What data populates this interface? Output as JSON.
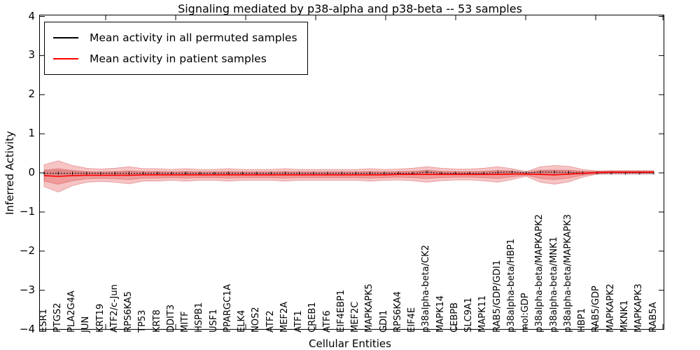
{
  "title": "Signaling mediated by p38-alpha and p38-beta -- 53 samples",
  "axes": {
    "ylabel": "Inferred Activity",
    "xlabel": "Cellular Entities",
    "y_tick_labels": [
      "4",
      "3",
      "2",
      "1",
      "0",
      "−1",
      "−2",
      "−3",
      "−4"
    ],
    "y_tick_values": [
      4,
      3,
      2,
      1,
      0,
      -1,
      -2,
      -3,
      -4
    ],
    "ylim": [
      -4,
      4
    ]
  },
  "legend": {
    "items": [
      {
        "label": "Mean activity in all permuted samples",
        "color": "#000000"
      },
      {
        "label": "Mean activity in patient samples",
        "color": "#ff0000"
      }
    ]
  },
  "colors": {
    "patient_line": "#ff0000",
    "permuted_line": "#000000",
    "patient_band_fill": "rgba(226,61,61,0.30)",
    "patient_band_edge": "rgba(200,45,45,0.40)",
    "permuted_band_fill": "rgba(130,130,130,0.28)"
  },
  "chart_data": {
    "type": "line",
    "title": "Signaling mediated by p38-alpha and p38-beta -- 53 samples",
    "xlabel": "Cellular Entities",
    "ylabel": "Inferred Activity",
    "ylim": [
      -4,
      4
    ],
    "grid": false,
    "legend_position": "upper left",
    "categories": [
      "ESR1",
      "PTGS2",
      "PLA2G4A",
      "JUN",
      "KRT19",
      "ATF2/c-Jun",
      "RPS6KA5",
      "TP53",
      "KRT8",
      "DDIT3",
      "MITF",
      "HSPB1",
      "USF1",
      "PPARGC1A",
      "ELK4",
      "NOS2",
      "ATF2",
      "MEF2A",
      "ATF1",
      "CREB1",
      "ATF6",
      "EIF4EBP1",
      "MEF2C",
      "MAPKAPK5",
      "GDI1",
      "RPS6KA4",
      "EIF4E",
      "p38alpha-beta/CK2",
      "MAPK14",
      "CEBPB",
      "SLC9A1",
      "MAPK11",
      "RAB5/GDP/GDI1",
      "p38alpha-beta/HBP1",
      "mol:GDP",
      "p38alpha-beta/MAPKAPK2",
      "p38alpha-beta/MNK1",
      "p38alpha-beta/MAPKAPK3",
      "HBP1",
      "RAB5/GDP",
      "MAPKAPK2",
      "MKNK1",
      "MAPKAPK3",
      "RAB5A"
    ],
    "series": [
      {
        "name": "Mean activity in all permuted samples",
        "color": "#000000",
        "line_style": "dashed",
        "values": [
          -0.01,
          -0.01,
          -0.01,
          -0.01,
          -0.01,
          -0.01,
          -0.01,
          -0.01,
          -0.01,
          -0.01,
          -0.01,
          -0.01,
          -0.01,
          -0.01,
          -0.01,
          -0.01,
          -0.01,
          -0.01,
          -0.01,
          -0.01,
          -0.01,
          -0.01,
          -0.01,
          -0.01,
          -0.01,
          -0.01,
          -0.01,
          0.02,
          -0.01,
          -0.01,
          -0.01,
          -0.01,
          0.01,
          0.02,
          0.0,
          0.02,
          0.02,
          0.01,
          0.0,
          0.0,
          0.0,
          0.0,
          0.0,
          0.0
        ],
        "band_std": [
          0.08,
          0.09,
          0.07,
          0.05,
          0.05,
          0.05,
          0.06,
          0.05,
          0.05,
          0.05,
          0.05,
          0.05,
          0.05,
          0.05,
          0.05,
          0.05,
          0.05,
          0.05,
          0.05,
          0.05,
          0.05,
          0.05,
          0.05,
          0.05,
          0.05,
          0.05,
          0.05,
          0.06,
          0.05,
          0.05,
          0.05,
          0.05,
          0.06,
          0.05,
          0.05,
          0.06,
          0.06,
          0.06,
          0.05,
          0.05,
          0.05,
          0.05,
          0.05,
          0.05
        ]
      },
      {
        "name": "Mean activity in patient samples",
        "color": "#ff0000",
        "line_style": "solid",
        "values": [
          -0.07,
          -0.09,
          -0.07,
          -0.06,
          -0.06,
          -0.06,
          -0.06,
          -0.05,
          -0.05,
          -0.05,
          -0.05,
          -0.05,
          -0.05,
          -0.05,
          -0.05,
          -0.05,
          -0.05,
          -0.05,
          -0.05,
          -0.05,
          -0.05,
          -0.05,
          -0.05,
          -0.05,
          -0.05,
          -0.04,
          -0.04,
          -0.04,
          -0.04,
          -0.04,
          -0.04,
          -0.04,
          -0.04,
          -0.03,
          -0.03,
          -0.04,
          -0.05,
          -0.03,
          -0.01,
          0.01,
          0.02,
          0.02,
          0.02,
          0.02
        ],
        "band_std": [
          0.14,
          0.2,
          0.13,
          0.09,
          0.08,
          0.09,
          0.11,
          0.08,
          0.08,
          0.07,
          0.08,
          0.07,
          0.07,
          0.08,
          0.07,
          0.07,
          0.07,
          0.08,
          0.07,
          0.07,
          0.07,
          0.07,
          0.07,
          0.08,
          0.07,
          0.07,
          0.08,
          0.1,
          0.08,
          0.07,
          0.07,
          0.08,
          0.1,
          0.07,
          0.03,
          0.1,
          0.12,
          0.1,
          0.05,
          0.02,
          0.02,
          0.02,
          0.02,
          0.02
        ]
      }
    ]
  }
}
